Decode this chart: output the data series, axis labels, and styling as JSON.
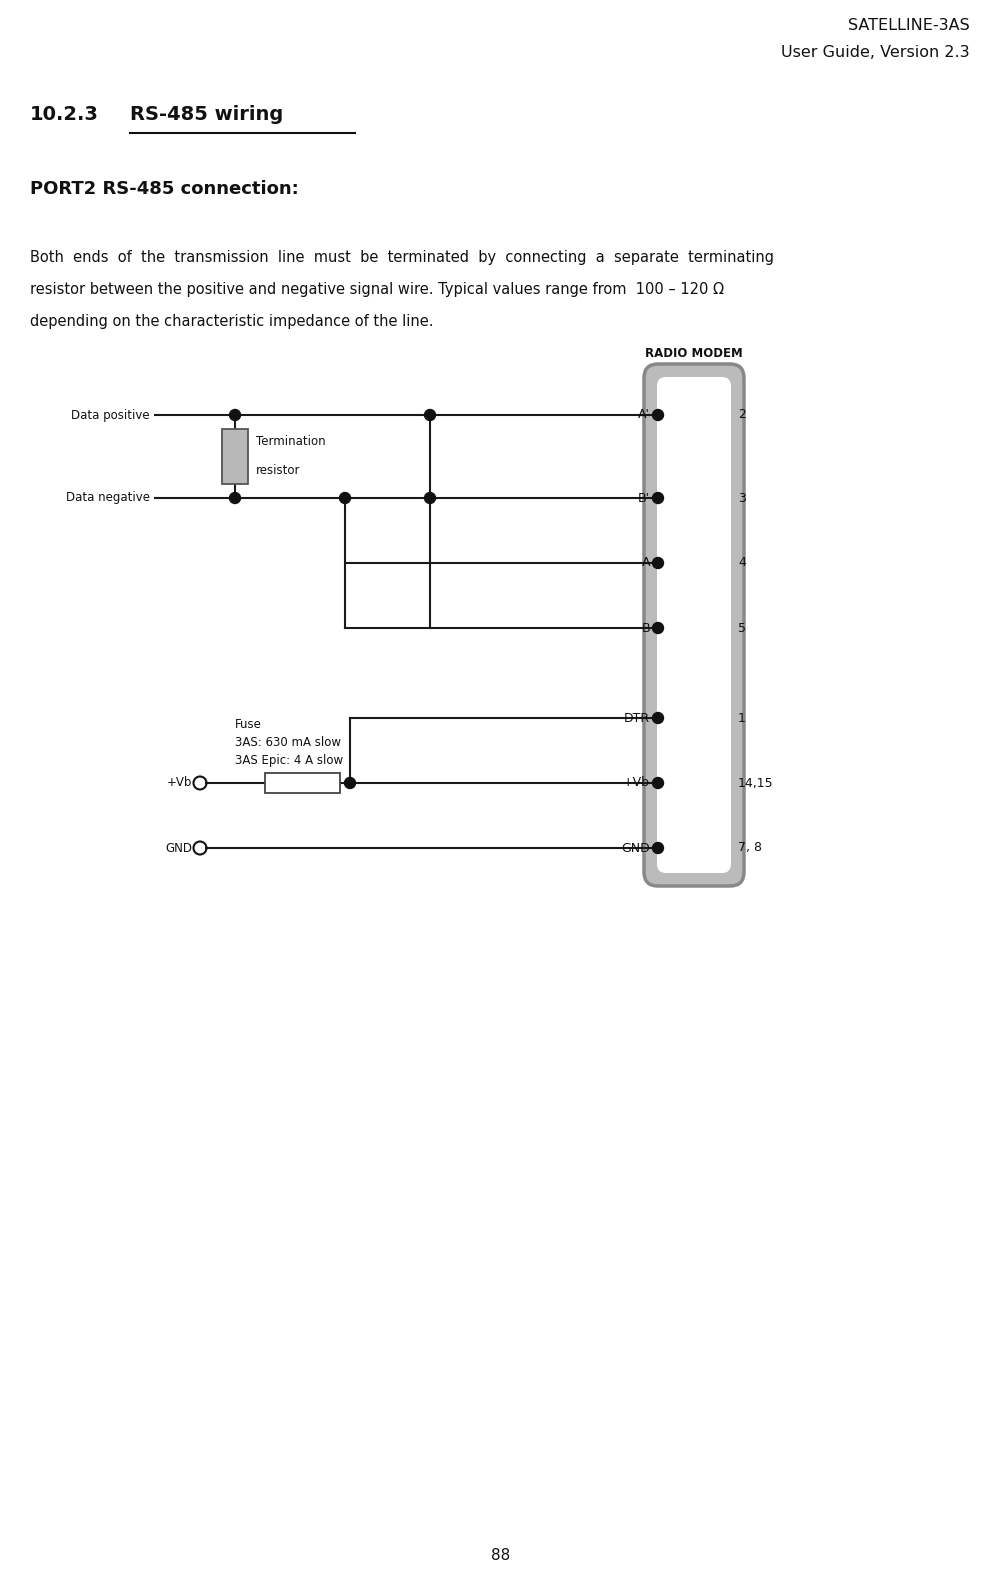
{
  "title_line1": "SATELLINE-3AS",
  "title_line2": "User Guide, Version 2.3",
  "section": "10.2.3",
  "section_title": "RS-485 wiring",
  "subtitle": "PORT2 RS-485 connection:",
  "body_lines": [
    "Both  ends  of  the  transmission  line  must  be  terminated  by  connecting  a  separate  terminating",
    "resistor between the positive and negative signal wire. Typical values range from  100 – 120 Ω",
    "depending on the characteristic impedance of the line."
  ],
  "radio_modem_label": "RADIO MODEM",
  "connector_pins": [
    "A'",
    "B'",
    "A",
    "B",
    "DTR",
    "+Vb",
    "GND"
  ],
  "pin_numbers": [
    "2",
    "3",
    "4",
    "5",
    "1",
    "14,15",
    "7, 8"
  ],
  "term_label1": "Termination",
  "term_label2": "resistor",
  "fuse_label1": "Fuse",
  "fuse_label2": "3AS: 630 mA slow",
  "fuse_label3": "3AS Epic: 4 A slow",
  "data_positive": "Data positive",
  "data_negative": "Data negative",
  "plus_vb": "+Vb",
  "gnd": "GND",
  "page_number": "88",
  "bg_color": "#ffffff",
  "line_color": "#1a1a1a",
  "dot_color": "#111111",
  "resistor_fill": "#b8b8b8"
}
